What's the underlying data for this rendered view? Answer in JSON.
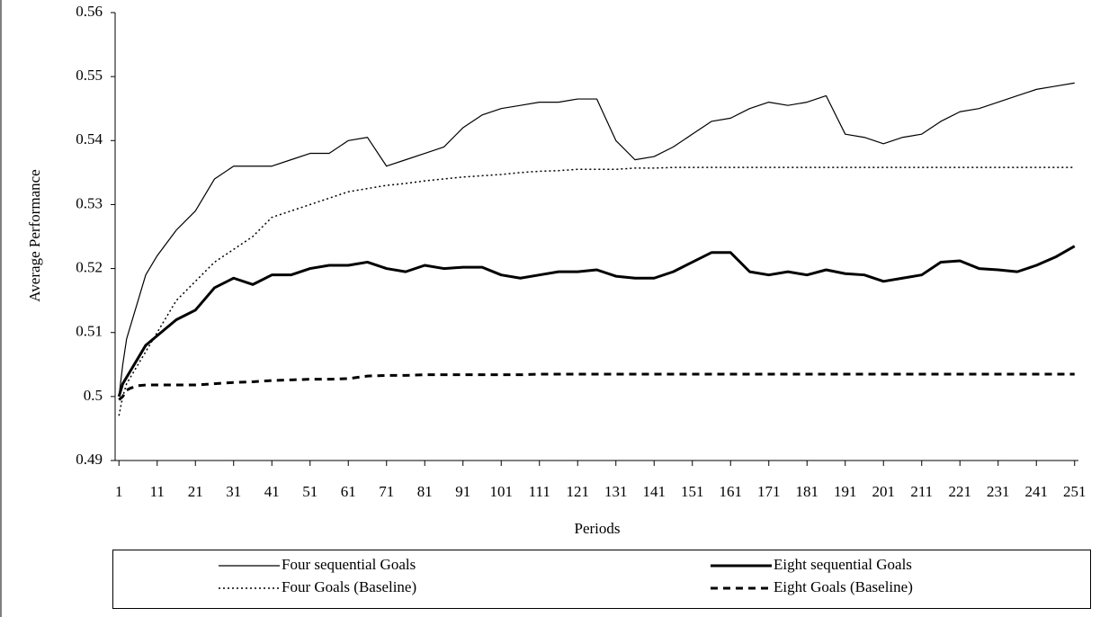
{
  "chart_data": {
    "type": "line",
    "xlabel": "Periods",
    "ylabel": "Average Performance",
    "xlim": [
      0,
      252
    ],
    "ylim": [
      0.49,
      0.56
    ],
    "xticks": [
      1,
      11,
      21,
      31,
      41,
      51,
      61,
      71,
      81,
      91,
      101,
      111,
      121,
      131,
      141,
      151,
      161,
      171,
      181,
      191,
      201,
      211,
      221,
      231,
      241,
      251
    ],
    "yticks": [
      0.49,
      0.5,
      0.51,
      0.52,
      0.53,
      0.54,
      0.55,
      0.56
    ],
    "grid": false,
    "legend": "bottom",
    "x": [
      1,
      2,
      3,
      4,
      6,
      8,
      11,
      16,
      21,
      26,
      31,
      36,
      41,
      46,
      51,
      56,
      61,
      66,
      71,
      76,
      81,
      86,
      91,
      96,
      101,
      106,
      111,
      116,
      121,
      126,
      131,
      136,
      141,
      146,
      151,
      156,
      161,
      166,
      171,
      176,
      181,
      186,
      191,
      196,
      201,
      206,
      211,
      216,
      221,
      226,
      231,
      236,
      241,
      246,
      251
    ],
    "series": [
      {
        "name": "Four sequential Goals",
        "color": "#000000",
        "line_width": 1.2,
        "line_style": "solid",
        "values": [
          0.5,
          0.505,
          0.509,
          0.511,
          0.515,
          0.519,
          0.522,
          0.526,
          0.529,
          0.534,
          0.536,
          0.536,
          0.536,
          0.537,
          0.538,
          0.538,
          0.54,
          0.5405,
          0.536,
          0.537,
          0.538,
          0.539,
          0.542,
          0.544,
          0.545,
          0.5455,
          0.546,
          0.546,
          0.5465,
          0.5465,
          0.54,
          0.537,
          0.5375,
          0.539,
          0.541,
          0.543,
          0.5435,
          0.545,
          0.546,
          0.5455,
          0.546,
          0.547,
          0.541,
          0.5405,
          0.5395,
          0.5405,
          0.541,
          0.543,
          0.5445,
          0.545,
          0.546,
          0.547,
          0.548,
          0.5485,
          0.549
        ]
      },
      {
        "name": "Eight sequential Goals",
        "color": "#000000",
        "line_width": 3,
        "line_style": "solid",
        "values": [
          0.5,
          0.502,
          0.503,
          0.504,
          0.506,
          0.508,
          0.5095,
          0.512,
          0.5135,
          0.517,
          0.5185,
          0.5175,
          0.519,
          0.519,
          0.52,
          0.5205,
          0.5205,
          0.521,
          0.52,
          0.5195,
          0.5205,
          0.52,
          0.5202,
          0.5202,
          0.519,
          0.5185,
          0.519,
          0.5195,
          0.5195,
          0.5198,
          0.5188,
          0.5185,
          0.5185,
          0.5195,
          0.521,
          0.5225,
          0.5225,
          0.5195,
          0.519,
          0.5195,
          0.519,
          0.5198,
          0.5192,
          0.519,
          0.518,
          0.5185,
          0.519,
          0.521,
          0.5212,
          0.52,
          0.5198,
          0.5195,
          0.5205,
          0.5218,
          0.5235
        ]
      },
      {
        "name": "Four Goals (Baseline)",
        "color": "#000000",
        "line_width": 1.5,
        "line_style": "dotted",
        "values": [
          0.497,
          0.5,
          0.502,
          0.503,
          0.505,
          0.507,
          0.51,
          0.515,
          0.518,
          0.521,
          0.523,
          0.525,
          0.528,
          0.529,
          0.53,
          0.531,
          0.532,
          0.5325,
          0.533,
          0.5333,
          0.5337,
          0.534,
          0.5343,
          0.5345,
          0.5347,
          0.535,
          0.5352,
          0.5353,
          0.5355,
          0.5355,
          0.5355,
          0.5357,
          0.5357,
          0.5358,
          0.5358,
          0.5358,
          0.5358,
          0.5358,
          0.5358,
          0.5358,
          0.5358,
          0.5358,
          0.5358,
          0.5358,
          0.5358,
          0.5358,
          0.5358,
          0.5358,
          0.5358,
          0.5358,
          0.5358,
          0.5358,
          0.5358,
          0.5358,
          0.5358
        ]
      },
      {
        "name": "Eight Goals (Baseline)",
        "color": "#000000",
        "line_width": 3,
        "line_style": "dashed",
        "values": [
          0.4995,
          0.5,
          0.501,
          0.5013,
          0.5017,
          0.5018,
          0.5018,
          0.5018,
          0.5018,
          0.502,
          0.5022,
          0.5023,
          0.5025,
          0.5026,
          0.5027,
          0.5027,
          0.5028,
          0.5032,
          0.5033,
          0.5033,
          0.5034,
          0.5034,
          0.5034,
          0.5034,
          0.5034,
          0.5034,
          0.5035,
          0.5035,
          0.5035,
          0.5035,
          0.5035,
          0.5035,
          0.5035,
          0.5035,
          0.5035,
          0.5035,
          0.5035,
          0.5035,
          0.5035,
          0.5035,
          0.5035,
          0.5035,
          0.5035,
          0.5035,
          0.5035,
          0.5035,
          0.5035,
          0.5035,
          0.5035,
          0.5035,
          0.5035,
          0.5035,
          0.5035,
          0.5035,
          0.5035
        ]
      }
    ]
  }
}
